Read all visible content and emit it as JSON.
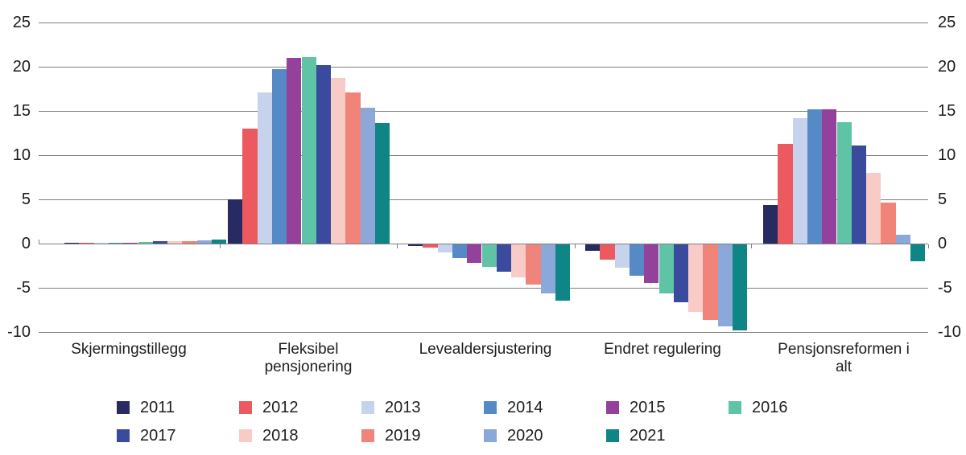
{
  "chart_data": {
    "type": "bar",
    "title": "",
    "xlabel": "",
    "ylabel": "",
    "categories": [
      {
        "lines": [
          "Skjermingstillegg"
        ]
      },
      {
        "lines": [
          "Fleksibel",
          "pensjonering"
        ]
      },
      {
        "lines": [
          "Levealdersjustering"
        ]
      },
      {
        "lines": [
          "Endret regulering"
        ]
      },
      {
        "lines": [
          "Pensjonsreformen i",
          "alt"
        ]
      }
    ],
    "series": [
      {
        "name": "2011",
        "color": "#272b62",
        "values": [
          0.05,
          5.0,
          -0.2,
          -0.7,
          4.4
        ]
      },
      {
        "name": "2012",
        "color": "#ec5a60",
        "values": [
          0.1,
          13.0,
          -0.4,
          -1.7,
          11.3
        ]
      },
      {
        "name": "2013",
        "color": "#c7d3ec",
        "values": [
          0.1,
          17.1,
          -0.9,
          -2.6,
          14.2
        ]
      },
      {
        "name": "2014",
        "color": "#568ac7",
        "values": [
          0.1,
          19.7,
          -1.5,
          -3.5,
          15.2
        ]
      },
      {
        "name": "2015",
        "color": "#93419a",
        "values": [
          0.1,
          21.0,
          -2.1,
          -4.4,
          15.2
        ]
      },
      {
        "name": "2016",
        "color": "#5fc4a6",
        "values": [
          0.2,
          21.1,
          -2.5,
          -5.5,
          13.7
        ]
      },
      {
        "name": "2017",
        "color": "#3a4b9e",
        "values": [
          0.25,
          20.2,
          -3.1,
          -6.5,
          11.1
        ]
      },
      {
        "name": "2018",
        "color": "#f9cbc6",
        "values": [
          0.3,
          18.7,
          -3.7,
          -7.6,
          8.0
        ]
      },
      {
        "name": "2019",
        "color": "#f0847b",
        "values": [
          0.3,
          17.1,
          -4.5,
          -8.5,
          4.6
        ]
      },
      {
        "name": "2020",
        "color": "#8ba8d9",
        "values": [
          0.4,
          15.4,
          -5.5,
          -9.3,
          1.0
        ]
      },
      {
        "name": "2021",
        "color": "#0f8586",
        "values": [
          0.5,
          13.6,
          -6.4,
          -9.7,
          -1.9
        ]
      }
    ],
    "y_axis": {
      "ticks": [
        25,
        20,
        15,
        10,
        5,
        0,
        -5,
        -10
      ],
      "ylim": [
        -10,
        25
      ],
      "grid": true,
      "labels_on_both_sides": true
    },
    "legend": {
      "position": "bottom",
      "row_item_counts": [
        6,
        5
      ],
      "entries": [
        "2011",
        "2012",
        "2013",
        "2014",
        "2015",
        "2016",
        "2017",
        "2018",
        "2019",
        "2020",
        "2021"
      ]
    }
  }
}
